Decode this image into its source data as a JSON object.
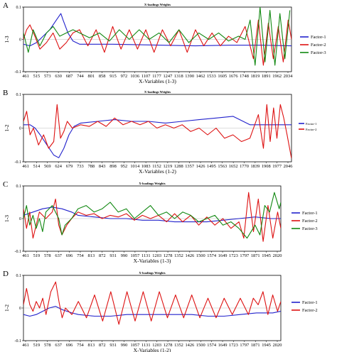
{
  "colors": {
    "factor1": "#2222cc",
    "factor2": "#dd1111",
    "factor3": "#118811",
    "axis": "#000000",
    "zero_line": "#bbbbbb"
  },
  "chart_data": [
    {
      "type": "line",
      "panel": "A",
      "title": "X-loadings Weights",
      "xlabel": "X-Variables (1-3)",
      "ylabel": "1-3",
      "yticks": [
        "0.1",
        "0",
        "-0.1"
      ],
      "ylim": [
        -0.1,
        0.1
      ],
      "xlim": [
        461,
        2080
      ],
      "xtick_labels": [
        "461",
        "515",
        "573",
        "630",
        "687",
        "744",
        "801",
        "858",
        "915",
        "972",
        "1036",
        "1107",
        "1177",
        "1247",
        "1318",
        "1390",
        "1462",
        "1533",
        "1605",
        "1676",
        "1748",
        "1819",
        "1891",
        "1962",
        "2034"
      ],
      "legend_position": "right",
      "series": [
        {
          "name": "Factor-1",
          "color_key": "factor1",
          "x": [
            461,
            500,
            540,
            580,
            620,
            660,
            687,
            700,
            730,
            760,
            800,
            1000,
            1300,
            1500,
            1700,
            1900,
            2080
          ],
          "y": [
            -0.015,
            -0.02,
            -0.01,
            0.01,
            0.03,
            0.06,
            0.08,
            0.06,
            0.02,
            -0.005,
            -0.015,
            -0.015,
            -0.018,
            -0.02,
            -0.018,
            -0.018,
            -0.02
          ]
        },
        {
          "name": "Factor-2",
          "color_key": "factor2",
          "x": [
            461,
            480,
            500,
            530,
            560,
            600,
            640,
            680,
            720,
            760,
            800,
            850,
            900,
            950,
            1000,
            1050,
            1100,
            1150,
            1200,
            1250,
            1300,
            1350,
            1400,
            1450,
            1500,
            1550,
            1600,
            1650,
            1700,
            1750,
            1800,
            1850,
            1880,
            1910,
            1940,
            1970,
            2000,
            2030,
            2060,
            2080
          ],
          "y": [
            0.0,
            0.03,
            0.045,
            0.01,
            -0.03,
            -0.01,
            0.02,
            -0.03,
            -0.01,
            0.02,
            0.03,
            -0.02,
            0.03,
            -0.04,
            0.04,
            -0.03,
            0.03,
            -0.03,
            0.03,
            -0.04,
            0.03,
            -0.02,
            0.03,
            -0.04,
            0.03,
            -0.02,
            0.02,
            -0.02,
            0.01,
            -0.01,
            0.04,
            -0.06,
            0.06,
            -0.08,
            0.05,
            -0.06,
            0.04,
            -0.07,
            0.06,
            0.0
          ]
        },
        {
          "name": "Factor-3",
          "color_key": "factor3",
          "x": [
            461,
            490,
            520,
            560,
            600,
            640,
            680,
            720,
            760,
            800,
            860,
            920,
            980,
            1040,
            1100,
            1160,
            1220,
            1280,
            1340,
            1400,
            1460,
            1520,
            1580,
            1640,
            1700,
            1760,
            1800,
            1830,
            1860,
            1890,
            1920,
            1950,
            1980,
            2010,
            2040,
            2070
          ],
          "y": [
            0.02,
            -0.04,
            0.03,
            -0.02,
            0.02,
            0.04,
            0.01,
            0.02,
            0.03,
            0.02,
            0.005,
            0.02,
            -0.005,
            0.03,
            0.0,
            0.03,
            0.0,
            0.02,
            -0.01,
            0.03,
            -0.01,
            0.02,
            0.0,
            0.02,
            -0.005,
            0.01,
            0.0,
            0.06,
            -0.08,
            0.1,
            -0.07,
            0.09,
            -0.08,
            0.08,
            -0.06,
            0.09
          ]
        }
      ]
    },
    {
      "type": "line",
      "panel": "B",
      "title": "X-loadings Weights",
      "xlabel": "X-Variables (1-2)",
      "ylabel": "1-2",
      "yticks": [
        "0.1",
        "0",
        "-0.1"
      ],
      "ylim": [
        -0.1,
        0.1
      ],
      "xlim": [
        461,
        2046
      ],
      "xtick_labels": [
        "461",
        "514",
        "569",
        "624",
        "679",
        "733",
        "788",
        "843",
        "898",
        "952",
        "1014",
        "1083",
        "1152",
        "1219",
        "1288",
        "1357",
        "1426",
        "1495",
        "1563",
        "1652",
        "1770",
        "1839",
        "1908",
        "1977",
        "2046"
      ],
      "legend_position": "right",
      "series": [
        {
          "name": "Factor-1",
          "color_key": "factor1",
          "x": [
            461,
            500,
            530,
            560,
            600,
            640,
            670,
            700,
            730,
            760,
            800,
            900,
            1000,
            1100,
            1200,
            1300,
            1400,
            1500,
            1600,
            1700,
            1760,
            1800,
            1900,
            2046
          ],
          "y": [
            0.01,
            0.01,
            0.0,
            -0.02,
            -0.05,
            -0.08,
            -0.088,
            -0.06,
            -0.02,
            0.005,
            0.015,
            0.02,
            0.025,
            0.02,
            0.02,
            0.015,
            0.02,
            0.025,
            0.03,
            0.035,
            0.02,
            0.01,
            0.01,
            0.01
          ]
        },
        {
          "name": "Factor-2",
          "color_key": "factor2",
          "x": [
            461,
            480,
            500,
            520,
            550,
            580,
            610,
            640,
            660,
            680,
            700,
            720,
            750,
            800,
            850,
            900,
            950,
            1000,
            1050,
            1100,
            1150,
            1200,
            1250,
            1300,
            1350,
            1400,
            1450,
            1500,
            1550,
            1600,
            1650,
            1700,
            1750,
            1800,
            1850,
            1880,
            1900,
            1920,
            1940,
            1960,
            1980,
            2000,
            2020,
            2046
          ],
          "y": [
            0.02,
            0.05,
            -0.02,
            0.0,
            -0.05,
            -0.02,
            -0.06,
            -0.04,
            0.07,
            -0.03,
            -0.01,
            0.02,
            0.0,
            0.01,
            0.005,
            0.02,
            0.005,
            0.03,
            0.01,
            0.02,
            0.01,
            0.02,
            0.0,
            0.01,
            0.0,
            0.01,
            -0.01,
            0.0,
            -0.02,
            0.0,
            -0.03,
            -0.02,
            -0.04,
            -0.03,
            0.04,
            -0.06,
            0.07,
            -0.04,
            0.06,
            -0.03,
            0.07,
            0.03,
            -0.02,
            -0.09
          ]
        }
      ]
    },
    {
      "type": "line",
      "panel": "C",
      "title": "X-loadings Weights",
      "xlabel": "X-Variables (1-3)",
      "ylabel": "1-3",
      "yticks": [
        "0.1",
        "0",
        "-0.1"
      ],
      "ylim": [
        -0.1,
        0.1
      ],
      "xlim": [
        461,
        2060
      ],
      "xtick_labels": [
        "461",
        "519",
        "578",
        "637",
        "696",
        "754",
        "813",
        "872",
        "931",
        "990",
        "1057",
        "1131",
        "1203",
        "1278",
        "1352",
        "1426",
        "1500",
        "1574",
        "1649",
        "1723",
        "1797",
        "1871",
        "1945",
        "2020"
      ],
      "legend_position": "right",
      "series": [
        {
          "name": "Factor-1",
          "color_key": "factor1",
          "x": [
            461,
            520,
            580,
            640,
            700,
            760,
            800,
            900,
            1000,
            1100,
            1200,
            1300,
            1400,
            1500,
            1600,
            1700,
            1800,
            1900,
            2000,
            2060
          ],
          "y": [
            0.01,
            0.02,
            0.03,
            0.035,
            0.03,
            0.02,
            0.01,
            0.005,
            0.0,
            0.0,
            -0.005,
            -0.005,
            -0.01,
            -0.01,
            -0.01,
            -0.005,
            0.0,
            0.005,
            0.0,
            0.0
          ]
        },
        {
          "name": "Factor-2",
          "color_key": "factor2",
          "x": [
            461,
            480,
            500,
            520,
            540,
            560,
            600,
            640,
            660,
            680,
            700,
            730,
            760,
            800,
            850,
            900,
            950,
            1000,
            1050,
            1100,
            1150,
            1200,
            1250,
            1300,
            1350,
            1400,
            1450,
            1500,
            1550,
            1600,
            1650,
            1700,
            1750,
            1800,
            1830,
            1860,
            1890,
            1920,
            1950,
            1980,
            2010,
            2040,
            2060
          ],
          "y": [
            0.03,
            -0.03,
            0.02,
            -0.06,
            -0.02,
            0.02,
            0.0,
            0.02,
            0.06,
            -0.02,
            -0.05,
            -0.02,
            0.0,
            0.02,
            0.01,
            0.015,
            0.0,
            0.01,
            0.005,
            0.015,
            -0.005,
            0.01,
            0.0,
            0.01,
            -0.01,
            0.015,
            -0.01,
            0.01,
            -0.02,
            0.005,
            -0.02,
            0.0,
            -0.03,
            -0.01,
            -0.06,
            0.08,
            -0.04,
            0.06,
            -0.07,
            0.04,
            -0.06,
            0.02,
            -0.03
          ]
        },
        {
          "name": "Factor-3",
          "color_key": "factor3",
          "x": [
            461,
            480,
            500,
            520,
            540,
            560,
            580,
            600,
            640,
            680,
            700,
            720,
            760,
            800,
            850,
            900,
            950,
            1000,
            1050,
            1100,
            1150,
            1200,
            1250,
            1300,
            1350,
            1400,
            1450,
            1500,
            1550,
            1600,
            1650,
            1700,
            1750,
            1800,
            1850,
            1900,
            1930,
            1960,
            1990,
            2020,
            2050,
            2060
          ],
          "y": [
            0.0,
            0.04,
            -0.02,
            0.01,
            -0.03,
            0.0,
            -0.04,
            0.02,
            0.04,
            0.0,
            -0.05,
            -0.02,
            0.0,
            0.03,
            0.04,
            0.02,
            0.03,
            0.05,
            0.02,
            0.03,
            0.0,
            0.02,
            0.04,
            0.01,
            0.02,
            0.0,
            0.02,
            0.01,
            -0.01,
            0.0,
            0.01,
            -0.02,
            -0.01,
            -0.03,
            -0.06,
            -0.02,
            -0.05,
            0.04,
            0.02,
            0.08,
            0.03,
            0.05
          ]
        }
      ]
    },
    {
      "type": "line",
      "panel": "D",
      "title": "X-loadings Weights",
      "xlabel": "X-Variables (1-2)",
      "ylabel": "1-2",
      "yticks": [
        "0.1",
        "0",
        "-0.1"
      ],
      "ylim": [
        -0.1,
        0.1
      ],
      "xlim": [
        461,
        2050
      ],
      "xtick_labels": [
        "461",
        "519",
        "578",
        "637",
        "696",
        "754",
        "813",
        "872",
        "931",
        "990",
        "1057",
        "1131",
        "1203",
        "1278",
        "1352",
        "1426",
        "1500",
        "1574",
        "1649",
        "1723",
        "1797",
        "1871",
        "1945",
        "2020"
      ],
      "legend_position": "right",
      "series": [
        {
          "name": "Factor-1",
          "color_key": "factor1",
          "x": [
            461,
            500,
            540,
            580,
            620,
            660,
            700,
            760,
            800,
            900,
            1000,
            1100,
            1200,
            1300,
            1400,
            1500,
            1600,
            1700,
            1800,
            1900,
            2000,
            2050
          ],
          "y": [
            -0.02,
            -0.025,
            -0.02,
            -0.01,
            0.0,
            0.005,
            -0.005,
            -0.015,
            -0.02,
            -0.025,
            -0.025,
            -0.02,
            -0.02,
            -0.02,
            -0.02,
            -0.02,
            -0.025,
            -0.025,
            -0.02,
            -0.015,
            -0.015,
            -0.01
          ]
        },
        {
          "name": "Factor-2",
          "color_key": "factor2",
          "x": [
            461,
            480,
            500,
            520,
            540,
            560,
            580,
            600,
            630,
            660,
            680,
            700,
            720,
            760,
            800,
            850,
            900,
            950,
            1000,
            1050,
            1100,
            1150,
            1200,
            1250,
            1300,
            1350,
            1400,
            1450,
            1500,
            1550,
            1600,
            1650,
            1700,
            1750,
            1800,
            1850,
            1880,
            1910,
            1940,
            1970,
            2000,
            2030,
            2050
          ],
          "y": [
            0.01,
            0.06,
            0.01,
            -0.01,
            0.02,
            0.0,
            0.03,
            -0.02,
            0.05,
            0.08,
            0.02,
            -0.03,
            0.0,
            -0.02,
            0.02,
            -0.03,
            0.04,
            -0.04,
            0.05,
            -0.05,
            0.05,
            -0.04,
            0.05,
            -0.04,
            0.05,
            -0.03,
            0.04,
            -0.03,
            0.04,
            -0.03,
            0.03,
            -0.03,
            0.03,
            -0.02,
            0.03,
            -0.02,
            0.03,
            0.01,
            0.05,
            -0.02,
            0.04,
            -0.01,
            0.02
          ]
        }
      ]
    }
  ]
}
